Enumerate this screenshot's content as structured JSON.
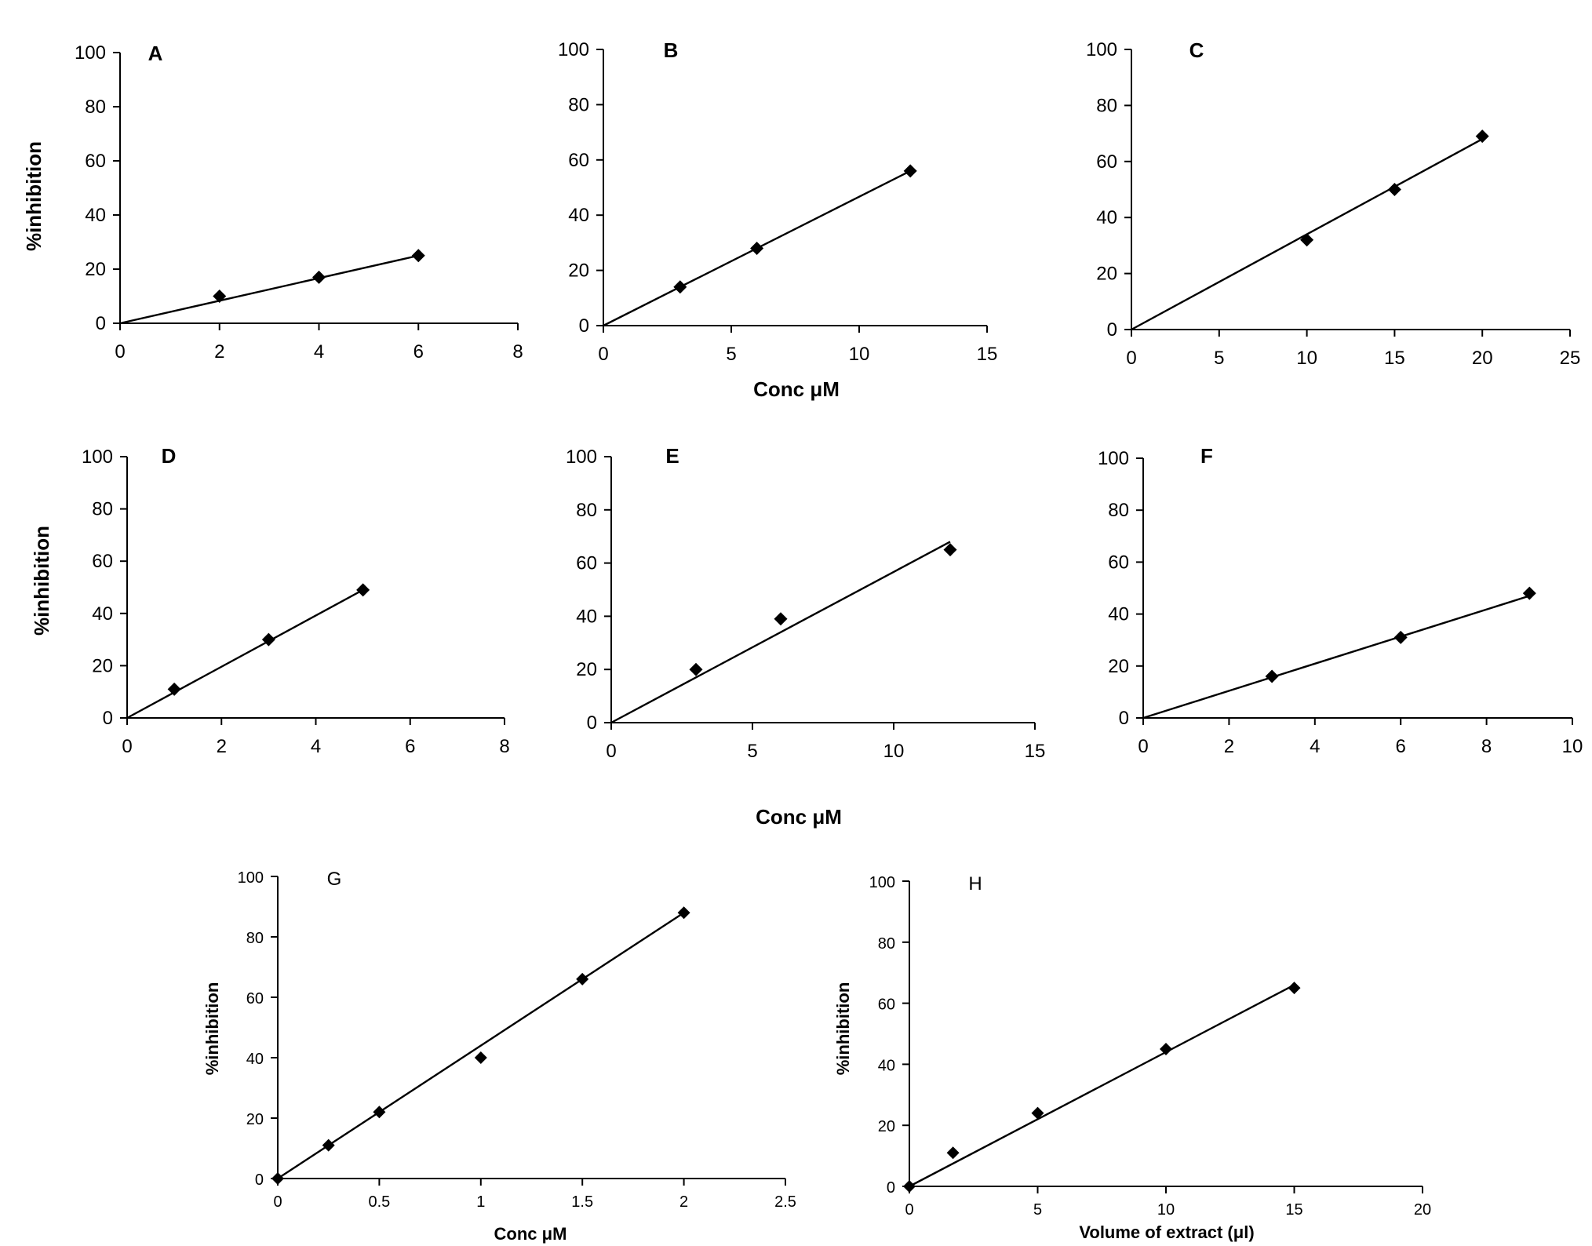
{
  "chart_data": [
    {
      "type": "scatter",
      "panel": "A",
      "ylabel": "%inhibition",
      "xlabel": "",
      "xlim": [
        0,
        8
      ],
      "xticks": [
        0,
        2,
        4,
        6,
        8
      ],
      "ylim": [
        0,
        100
      ],
      "yticks": [
        0,
        20,
        40,
        60,
        80,
        100
      ],
      "points": [
        [
          2,
          10
        ],
        [
          4,
          17
        ],
        [
          6,
          25
        ]
      ],
      "fit_line": [
        [
          0,
          0
        ],
        [
          6,
          25
        ]
      ]
    },
    {
      "type": "scatter",
      "panel": "B",
      "ylabel": "",
      "xlabel": "Conc μM",
      "xlim": [
        0,
        15
      ],
      "xticks": [
        0,
        5,
        10,
        15
      ],
      "ylim": [
        0,
        100
      ],
      "yticks": [
        0,
        20,
        40,
        60,
        80,
        100
      ],
      "points": [
        [
          3,
          14
        ],
        [
          6,
          28
        ],
        [
          12,
          56
        ]
      ],
      "fit_line": [
        [
          0,
          0
        ],
        [
          12,
          56
        ]
      ]
    },
    {
      "type": "scatter",
      "panel": "C",
      "ylabel": "",
      "xlabel": "",
      "xlim": [
        0,
        25
      ],
      "xticks": [
        0,
        5,
        10,
        15,
        20,
        25
      ],
      "ylim": [
        0,
        100
      ],
      "yticks": [
        0,
        20,
        40,
        60,
        80,
        100
      ],
      "points": [
        [
          10,
          32
        ],
        [
          15,
          50
        ],
        [
          20,
          69
        ]
      ],
      "fit_line": [
        [
          0,
          0
        ],
        [
          20,
          68
        ]
      ]
    },
    {
      "type": "scatter",
      "panel": "D",
      "ylabel": "%inhibition",
      "xlabel": "",
      "xlim": [
        0,
        8
      ],
      "xticks": [
        0,
        2,
        4,
        6,
        8
      ],
      "ylim": [
        0,
        100
      ],
      "yticks": [
        0,
        20,
        40,
        60,
        80,
        100
      ],
      "points": [
        [
          1,
          11
        ],
        [
          3,
          30
        ],
        [
          5,
          49
        ]
      ],
      "fit_line": [
        [
          0,
          0
        ],
        [
          5,
          49
        ]
      ]
    },
    {
      "type": "scatter",
      "panel": "E",
      "ylabel": "",
      "xlabel": "",
      "xlim": [
        0,
        15
      ],
      "xticks": [
        0,
        5,
        10,
        15
      ],
      "ylim": [
        0,
        100
      ],
      "yticks": [
        0,
        20,
        40,
        60,
        80,
        100
      ],
      "points": [
        [
          3,
          20
        ],
        [
          6,
          39
        ],
        [
          12,
          65
        ]
      ],
      "fit_line": [
        [
          0,
          0
        ],
        [
          12,
          68
        ]
      ]
    },
    {
      "type": "scatter",
      "panel": "F",
      "ylabel": "",
      "xlabel": "",
      "xlim": [
        0,
        10
      ],
      "xticks": [
        0,
        2,
        4,
        6,
        8,
        10
      ],
      "ylim": [
        0,
        100
      ],
      "yticks": [
        0,
        20,
        40,
        60,
        80,
        100
      ],
      "points": [
        [
          3,
          16
        ],
        [
          6,
          31
        ],
        [
          9,
          48
        ]
      ],
      "fit_line": [
        [
          0,
          0
        ],
        [
          9,
          47
        ]
      ]
    },
    {
      "type": "scatter",
      "panel": "G",
      "ylabel": "%inhibition",
      "xlabel": "Conc μM",
      "xlim": [
        0,
        2.5
      ],
      "xticks": [
        0,
        0.5,
        1,
        1.5,
        2,
        2.5
      ],
      "ylim": [
        0,
        100
      ],
      "yticks": [
        0,
        20,
        40,
        60,
        80,
        100
      ],
      "points": [
        [
          0,
          0
        ],
        [
          0.25,
          11
        ],
        [
          0.5,
          22
        ],
        [
          1,
          40
        ],
        [
          1.5,
          66
        ],
        [
          2,
          88
        ]
      ],
      "fit_line": [
        [
          0,
          0
        ],
        [
          2,
          88
        ]
      ]
    },
    {
      "type": "scatter",
      "panel": "H",
      "ylabel": "%inhibition",
      "xlabel": "Volume of extract (μl)",
      "xlim": [
        0,
        20
      ],
      "xticks": [
        0,
        5,
        10,
        15,
        20
      ],
      "ylim": [
        0,
        100
      ],
      "yticks": [
        0,
        20,
        40,
        60,
        80,
        100
      ],
      "points": [
        [
          0,
          0
        ],
        [
          1.7,
          11
        ],
        [
          5,
          24
        ],
        [
          10,
          45
        ],
        [
          15,
          65
        ]
      ],
      "fit_line": [
        [
          0,
          0
        ],
        [
          15,
          66
        ]
      ]
    }
  ],
  "shared_labels": {
    "row2_xlabel": "Conc μM",
    "row2_ylabel": "%inhibition"
  }
}
